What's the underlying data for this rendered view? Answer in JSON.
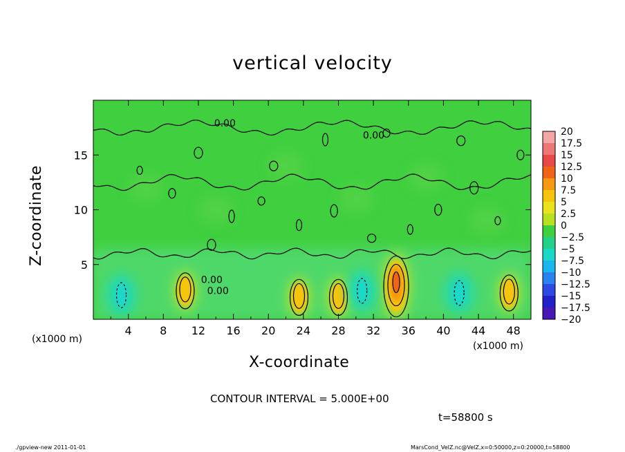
{
  "chart_data": {
    "type": "heatmap",
    "title": "vertical velocity",
    "xlabel": "X-coordinate",
    "ylabel": "Z-coordinate",
    "x_unit": "(x1000 m)",
    "xlim": [
      0,
      50
    ],
    "ylim": [
      0,
      20
    ],
    "x_ticks": [
      4,
      8,
      12,
      16,
      20,
      24,
      28,
      32,
      36,
      40,
      44,
      48
    ],
    "y_ticks": [
      5,
      10,
      15
    ],
    "colorbar_levels": [
      "20",
      "17.5",
      "15",
      "12.5",
      "10",
      "7.5",
      "5",
      "2.5",
      "0",
      "-2.5",
      "-5",
      "-7.5",
      "-10",
      "-12.5",
      "-15",
      "-17.5",
      "-20"
    ],
    "colorbar_colors": [
      "#f4a6a6",
      "#ee7676",
      "#e84848",
      "#f06418",
      "#f59a10",
      "#f5c40c",
      "#e9e21c",
      "#b6e020",
      "#3fcf3f",
      "#22d28a",
      "#1ad8c8",
      "#18b8ee",
      "#2a82f0",
      "#2e48e4",
      "#2420c8",
      "#4818b4",
      "#7010aa"
    ],
    "contour_label": "0.00",
    "features": [
      {
        "x": 34.6,
        "z": 3.0,
        "w_max": 10,
        "type": "updraft"
      },
      {
        "x": 10.5,
        "z": 2.6,
        "w_max": 6,
        "type": "updraft"
      },
      {
        "x": 47.5,
        "z": 2.4,
        "w_max": 6,
        "type": "updraft"
      },
      {
        "x": 23.5,
        "z": 2.0,
        "w_max": 5,
        "type": "updraft"
      },
      {
        "x": 28.0,
        "z": 2.0,
        "w_max": 5,
        "type": "updraft"
      },
      {
        "x": 3.2,
        "z": 2.2,
        "w_max": -5,
        "type": "downdraft"
      },
      {
        "x": 30.7,
        "z": 2.6,
        "w_max": -5,
        "type": "downdraft"
      },
      {
        "x": 41.8,
        "z": 2.4,
        "w_max": -5,
        "type": "downdraft"
      }
    ]
  },
  "texts": {
    "title": "vertical velocity",
    "xlabel": "X-coordinate",
    "ylabel": "Z-coordinate",
    "x_unit_left": "(x1000 m)",
    "x_unit_right": "(x1000 m)",
    "contour_interval": "CONTOUR INTERVAL = 5.000E+00",
    "time": "t=58800 s",
    "footer_left": "./gpview-new   2011-01-01",
    "footer_right": "MarsCond_VelZ.nc@VelZ,x=0:50000,z=0:20000,t=58800"
  }
}
